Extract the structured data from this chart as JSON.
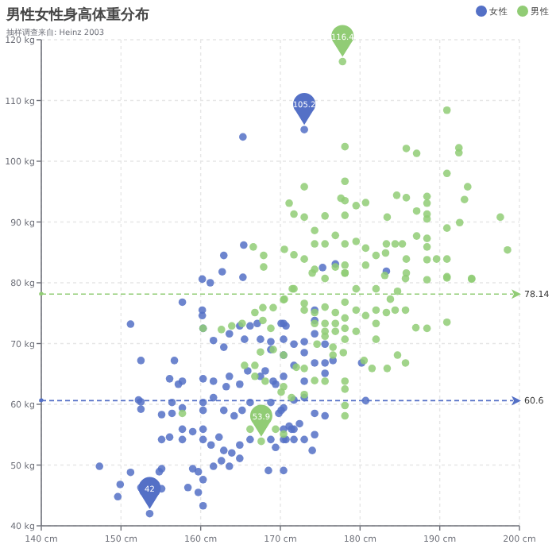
{
  "chart_data": {
    "type": "scatter",
    "title": "男性女性身高体重分布",
    "subtitle": "抽样调查来自: Heinz  2003",
    "legend": "top right",
    "grid": true,
    "marker": "circle",
    "xlim": [
      140,
      200
    ],
    "ylim": [
      40,
      120
    ],
    "xticks": [
      {
        "value": 140,
        "label": "140 cm"
      },
      {
        "value": 150,
        "label": "150 cm"
      },
      {
        "value": 160,
        "label": "160 cm"
      },
      {
        "value": 170,
        "label": "170 cm"
      },
      {
        "value": 180,
        "label": "180 cm"
      },
      {
        "value": 190,
        "label": "190 cm"
      },
      {
        "value": 200,
        "label": "200 cm"
      }
    ],
    "yticks": [
      {
        "value": 40,
        "label": "40 kg"
      },
      {
        "value": 50,
        "label": "50 kg"
      },
      {
        "value": 60,
        "label": "60 kg"
      },
      {
        "value": 70,
        "label": "70 kg"
      },
      {
        "value": 80,
        "label": "80 kg"
      },
      {
        "value": 90,
        "label": "90 kg"
      },
      {
        "value": 100,
        "label": "100 kg"
      },
      {
        "value": 110,
        "label": "110 kg"
      },
      {
        "value": 120,
        "label": "120 kg"
      }
    ],
    "series": [
      {
        "name": "女性",
        "color": "#5470c6",
        "x": [
          160.2,
          161.2,
          162.7,
          165.3,
          157.7,
          160.2,
          160.2,
          151.2,
          152.5,
          156.7,
          160.3,
          161.6,
          162.9,
          163.6,
          164.9,
          165.5,
          166.2,
          167.1,
          167.5,
          168.8,
          170.1,
          170.7,
          156.1,
          157.7,
          157.2,
          160.3,
          161.6,
          163.2,
          163.6,
          164.9,
          165.9,
          167.5,
          169.4,
          152.2,
          152.5,
          155.1,
          156.4,
          156.4,
          157.7,
          160.3,
          160.3,
          161.6,
          162.9,
          164.2,
          165.2,
          166.2,
          168.8,
          170.1,
          155.1,
          156.1,
          157.7,
          157.7,
          159.0,
          160.3,
          160.3,
          161.3,
          162.3,
          162.9,
          163.9,
          164.9,
          166.2,
          168.8,
          170.7,
          171.4,
          155.1,
          154.8,
          159.0,
          159.7,
          160.3,
          161.6,
          162.6,
          163.6,
          164.9,
          168.5,
          147.3,
          151.2,
          149.9,
          152.5,
          155.1,
          158.4,
          159.7,
          160.3,
          149.6,
          153.6,
          152.5,
          168.1,
          169.1,
          170.4,
          170.4,
          170.4,
          170.4,
          170.4,
          170.4,
          170.4,
          170.4,
          171.7,
          171.7,
          171.7,
          171.7,
          171.7,
          173.0,
          173.0,
          173.0,
          173.0,
          173.0,
          174.3,
          174.3,
          174.3,
          174.3,
          174.3,
          174.3,
          175.6,
          175.6,
          175.6,
          175.6,
          176.6,
          174.0,
          172.4,
          171.1,
          169.4,
          180.2,
          180.7,
          169.8,
          168.8,
          173.0,
          175.3,
          176.9,
          183.3,
          165.3,
          165.4,
          162.9
        ],
        "values": [
          80.6,
          80.0,
          81.8,
          80.9,
          76.8,
          75.5,
          74.6,
          73.2,
          67.2,
          67.2,
          72.5,
          70.5,
          69.4,
          71.6,
          72.9,
          70.7,
          72.9,
          73.3,
          70.7,
          70.3,
          73.3,
          72.9,
          64.2,
          63.8,
          63.3,
          64.2,
          63.8,
          62.9,
          64.6,
          63.3,
          65.5,
          64.6,
          63.3,
          60.7,
          59.2,
          58.3,
          60.3,
          58.5,
          59.4,
          60.3,
          59.0,
          61.1,
          59.0,
          58.1,
          59.0,
          60.3,
          60.3,
          59.0,
          54.2,
          54.6,
          55.9,
          54.2,
          55.5,
          55.9,
          54.2,
          53.3,
          54.6,
          52.4,
          52.0,
          53.3,
          54.2,
          54.2,
          54.2,
          55.9,
          49.4,
          48.9,
          49.4,
          48.9,
          47.6,
          49.8,
          50.7,
          49.8,
          51.1,
          49.1,
          49.8,
          48.8,
          46.8,
          46.3,
          46.1,
          46.3,
          45.5,
          43.3,
          44.8,
          42.0,
          60.4,
          65.5,
          63.8,
          73.3,
          70.7,
          68.1,
          64.6,
          59.4,
          55.9,
          54.2,
          49.1,
          69.9,
          66.4,
          60.7,
          55.9,
          54.2,
          70.3,
          68.5,
          63.8,
          61.1,
          54.2,
          75.5,
          73.8,
          71.6,
          66.8,
          58.5,
          55.0,
          69.9,
          66.8,
          65.1,
          58.1,
          67.2,
          52.4,
          56.8,
          56.4,
          52.9,
          66.8,
          60.6,
          58.5,
          69.0,
          105.2,
          82.5,
          83.1,
          81.9,
          104.0,
          86.2,
          84.5
        ]
      },
      {
        "name": "男性",
        "color": "#91cc75",
        "x": [
          160.3,
          162.6,
          163.9,
          165.2,
          166.8,
          167.8,
          169.1,
          170.4,
          171.7,
          167.8,
          168.8,
          167.5,
          169.1,
          170.4,
          165.5,
          166.8,
          166.8,
          168.1,
          170.1,
          171.4,
          157.7,
          166.2,
          167.6,
          169.4,
          170.4,
          170.5,
          171.5,
          173.0,
          173.0,
          174.3,
          174.3,
          175.6,
          175.6,
          175.6,
          175.6,
          176.9,
          176.9,
          176.9,
          178.1,
          178.1,
          178.1,
          178.1,
          179.5,
          179.5,
          180.7,
          182.0,
          182.0,
          182.0,
          183.3,
          184.4,
          185.7,
          187.0,
          188.4,
          190.9,
          177.9,
          176.6,
          174.6,
          173.0,
          172.0,
          174.3,
          175.6,
          178.1,
          178.1,
          178.1,
          178.1,
          180.5,
          181.5,
          183.4,
          184.7,
          185.7,
          176.6,
          173.0,
          170.4,
          174.0,
          175.6,
          178.1,
          179.5,
          182.0,
          183.1,
          185.7,
          188.4,
          190.9,
          194.0,
          184.7,
          183.8,
          177.8,
          190.9,
          178.1,
          185.8,
          187.1,
          192.4,
          192.4,
          190.9,
          173.0,
          178.1,
          193.5,
          193.1,
          171.1,
          177.6,
          178.1,
          179.5,
          180.7,
          184.6,
          185.8,
          188.4,
          188.4,
          188.4,
          188.4,
          187.1,
          171.7,
          173.0,
          175.6,
          178.1,
          183.4,
          197.6,
          192.5,
          190.9,
          174.3,
          176.9,
          175.6,
          174.3,
          178.1,
          179.5,
          180.7,
          183.3,
          184.4,
          185.3,
          187.1,
          188.4,
          188.4,
          188.4,
          190.9,
          189.6,
          185.8,
          185.8,
          198.5,
          170.5,
          171.7,
          173.0,
          174.3,
          176.9,
          178.1,
          178.1,
          180.7,
          182.0,
          183.2,
          190.9,
          194.0,
          166.6,
          167.9,
          167.9
        ],
        "values": [
          72.5,
          72.3,
          72.9,
          73.3,
          75.1,
          75.9,
          75.9,
          77.2,
          79.0,
          73.8,
          72.5,
          68.6,
          69.0,
          68.1,
          66.4,
          66.4,
          64.6,
          63.8,
          62.0,
          61.1,
          58.5,
          55.9,
          53.9,
          55.9,
          55.1,
          77.3,
          79.0,
          76.6,
          75.5,
          75.1,
          73.3,
          76.0,
          73.3,
          72.0,
          71.2,
          75.1,
          73.3,
          72.0,
          76.8,
          74.2,
          72.5,
          70.7,
          75.5,
          72.0,
          74.6,
          75.5,
          73.3,
          70.7,
          75.1,
          75.5,
          75.5,
          72.6,
          72.5,
          73.5,
          68.5,
          68.1,
          69.9,
          65.9,
          66.1,
          63.9,
          63.8,
          63.8,
          62.5,
          59.8,
          58.1,
          67.2,
          65.9,
          65.9,
          68.1,
          66.8,
          69.4,
          61.6,
          62.9,
          81.6,
          80.7,
          81.6,
          79.0,
          79.0,
          81.2,
          80.7,
          80.5,
          80.8,
          80.6,
          78.6,
          77.3,
          116.4,
          108.4,
          102.4,
          102.1,
          101.3,
          102.2,
          101.4,
          98.0,
          95.8,
          96.7,
          95.8,
          93.7,
          93.1,
          93.9,
          93.5,
          92.7,
          93.2,
          94.4,
          94.0,
          94.2,
          93.1,
          91.3,
          90.5,
          91.8,
          91.3,
          90.8,
          91.0,
          91.1,
          90.8,
          90.8,
          89.9,
          89.0,
          88.6,
          87.8,
          86.4,
          86.4,
          86.4,
          86.8,
          85.7,
          86.4,
          86.4,
          86.4,
          87.7,
          87.3,
          85.9,
          83.8,
          83.9,
          83.9,
          83.9,
          81.6,
          85.4,
          85.5,
          84.6,
          83.9,
          82.2,
          82.6,
          82.9,
          81.6,
          82.9,
          84.5,
          84.9,
          81.0,
          80.7,
          85.9,
          84.5,
          82.6
        ]
      }
    ],
    "annotations": [
      {
        "text": "105.2",
        "x": 173.0,
        "y": 105.2
      },
      {
        "text": "42",
        "x": 153.6,
        "y": 42.0
      },
      {
        "text": "116.4",
        "x": 177.8,
        "y": 116.4
      },
      {
        "text": "53.9",
        "x": 167.6,
        "y": 53.9
      }
    ],
    "ref_lines": [
      {
        "axis": "y",
        "value": 78.14,
        "label": "78.14",
        "color": "#91cc75",
        "line_style": "dashed"
      },
      {
        "axis": "y",
        "value": 60.6,
        "label": "60.6",
        "color": "#5470c6",
        "line_style": "dashed"
      }
    ]
  }
}
